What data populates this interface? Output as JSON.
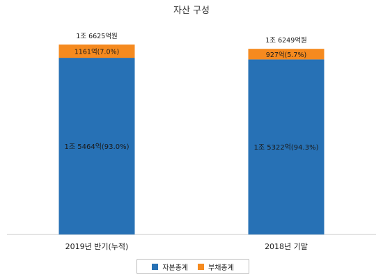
{
  "chart_data": {
    "type": "bar",
    "stacked": true,
    "title": "자산 구성",
    "categories": [
      "2019년 반기(누적)",
      "2018년 기말"
    ],
    "ylim": [
      0,
      16625
    ],
    "series": [
      {
        "name": "자본총계",
        "color": "#2771b5",
        "values": [
          15464,
          15322
        ],
        "labels": [
          "1조 5464억(93.0%)",
          "1조 5322억(94.3%)"
        ]
      },
      {
        "name": "부채총계",
        "color": "#f58a1f",
        "values": [
          1161,
          927
        ],
        "labels": [
          "1161억(7.0%)",
          "927억(5.7%)"
        ]
      }
    ],
    "totals": [
      "1조 6625억원",
      "1조 6249억원"
    ],
    "legend_position": "bottom"
  }
}
